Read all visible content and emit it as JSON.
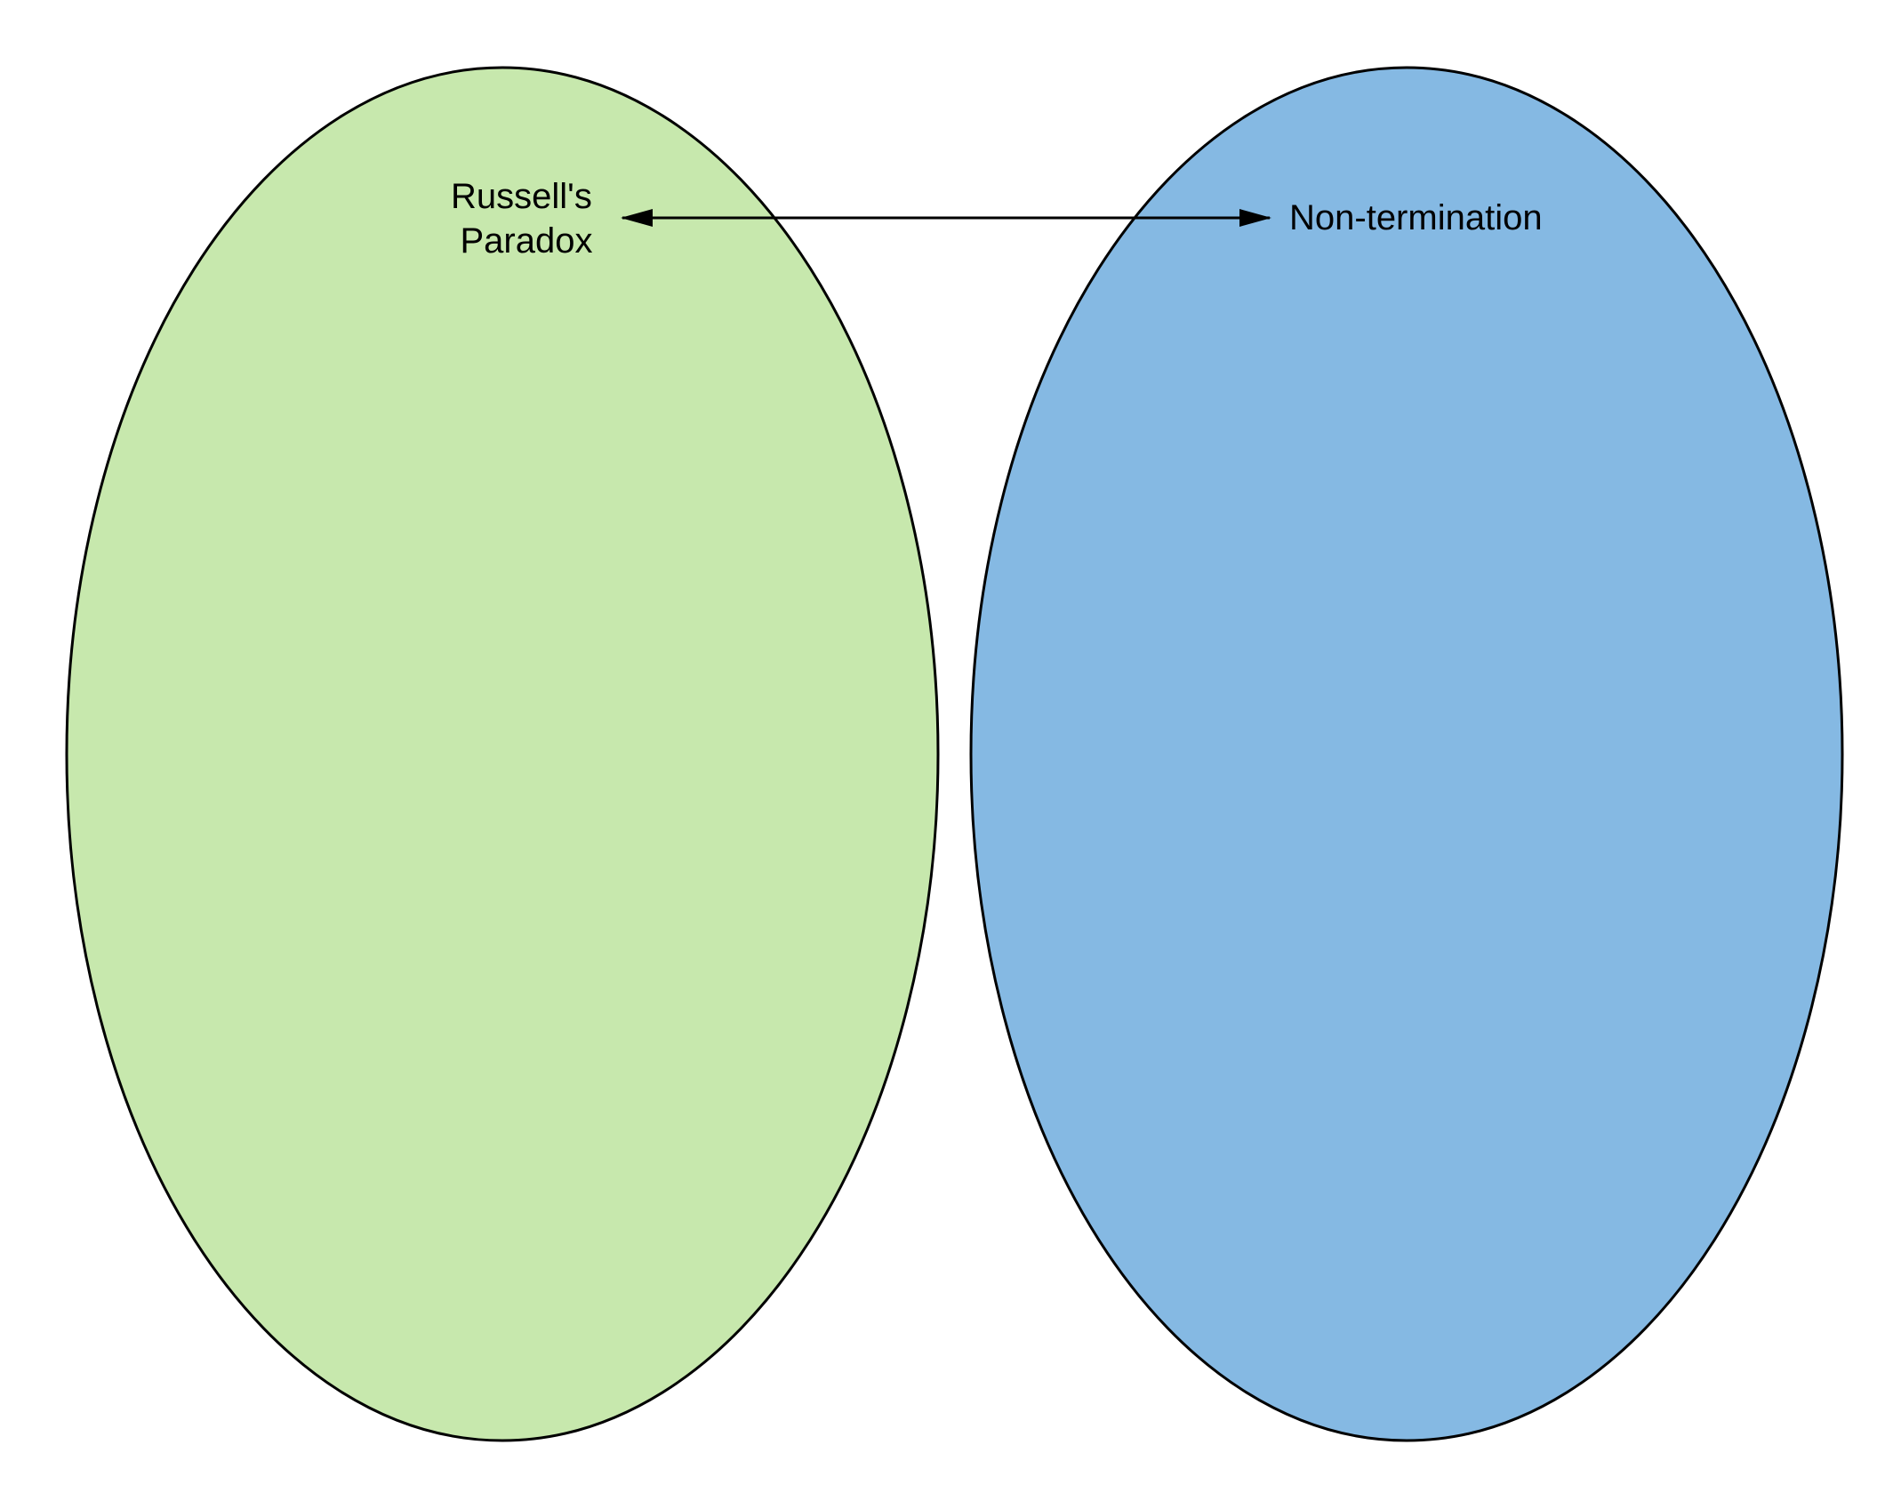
{
  "diagram": {
    "left_set": {
      "fill": "#c7e8ad",
      "label_lines": [
        "Russell's",
        "Paradox"
      ]
    },
    "right_set": {
      "fill": "#85b9e3",
      "label": "Non-termination"
    },
    "connector": {
      "type": "bidirectional-arrow",
      "color": "#000000"
    },
    "outline_color": "#000000"
  }
}
